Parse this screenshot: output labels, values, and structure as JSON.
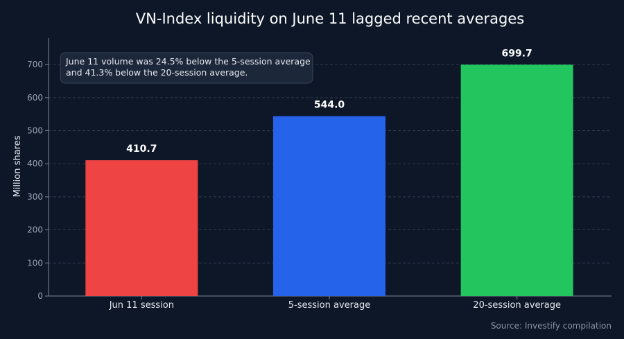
{
  "chart_data": {
    "type": "bar",
    "title": "VN-Index liquidity on June 11 lagged recent averages",
    "ylabel": "Million shares",
    "xlabel": "",
    "categories": [
      "Jun 11 session",
      "5-session average",
      "20-session average"
    ],
    "values": [
      410.7,
      544.0,
      699.7
    ],
    "value_labels": [
      "410.7",
      "544.0",
      "699.7"
    ],
    "colors": [
      "#ef4444",
      "#2563eb",
      "#22c55e"
    ],
    "ylim": [
      0,
      780
    ],
    "yticks": [
      0,
      100,
      200,
      300,
      400,
      500,
      600,
      700
    ],
    "ytick_labels": [
      "0",
      "100",
      "200",
      "300",
      "400",
      "500",
      "600",
      "700"
    ],
    "grid": true,
    "annotation": {
      "line1": "June 11 volume was 24.5% below the 5-session average",
      "line2": "and 41.3% below the 20-session average."
    },
    "source": "Source: Investify compilation"
  }
}
